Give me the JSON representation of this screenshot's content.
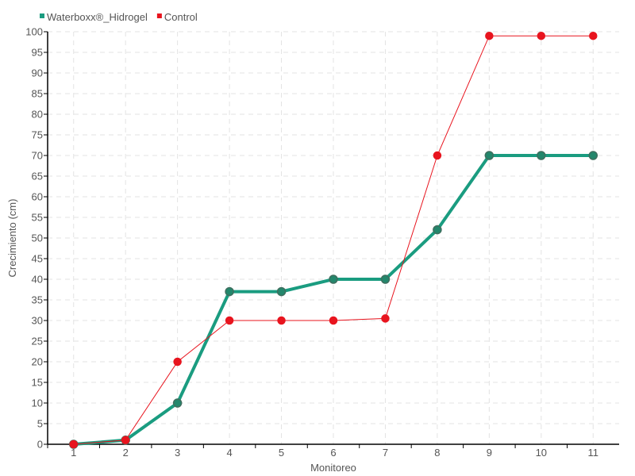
{
  "chart_data": {
    "type": "line",
    "title": "",
    "xlabel": "Monitoreo",
    "ylabel": "Crecimiento (cm)",
    "categories": [
      "1",
      "2",
      "3",
      "4",
      "5",
      "6",
      "7",
      "8",
      "9",
      "10",
      "11"
    ],
    "ylim": [
      0,
      100
    ],
    "ytick_step": 5,
    "grid": true,
    "legend_position": "top-left",
    "series": [
      {
        "name": "Waterboxx®_Hidrogel",
        "color": "#1a9c80",
        "values": [
          0,
          1,
          10,
          37,
          37,
          40,
          40,
          52,
          70,
          70,
          70
        ]
      },
      {
        "name": "Control",
        "color": "#e8141e",
        "values": [
          0,
          1,
          20,
          30,
          30,
          30,
          30.5,
          70,
          99,
          99,
          99
        ]
      }
    ]
  }
}
